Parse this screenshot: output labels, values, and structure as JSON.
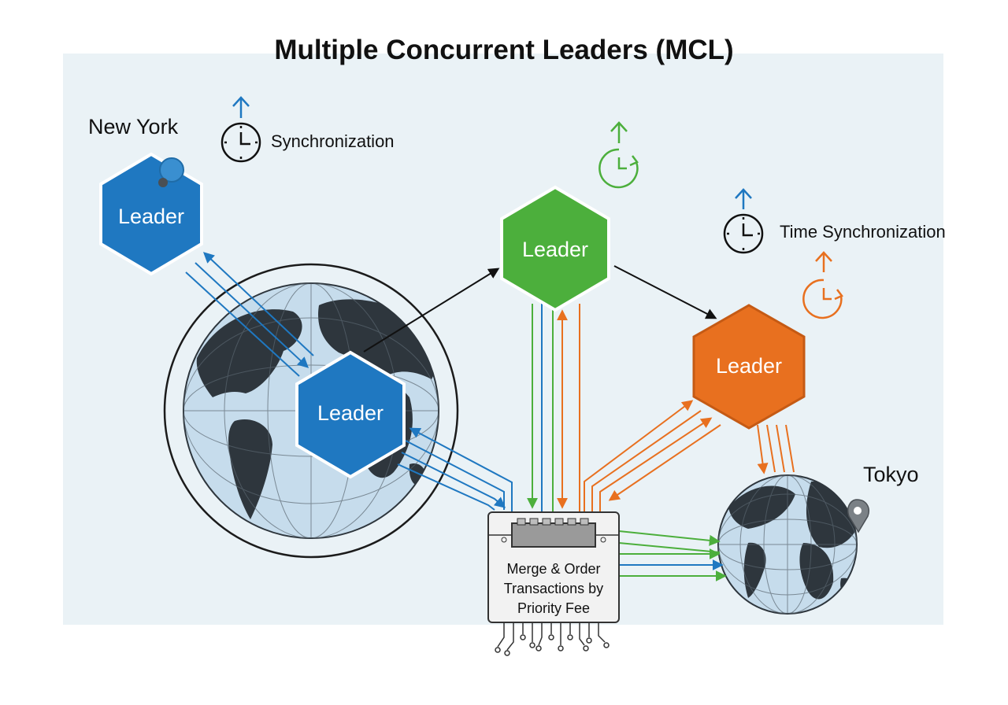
{
  "title": "Multiple Concurrent Leaders (MCL)",
  "labels": {
    "new_york": "New York",
    "tokyo": "Tokyo",
    "synchronization": "Synchronization",
    "time_synchronization": "Time Synchronization"
  },
  "leaders": {
    "new_york_leader": "Leader",
    "globe_leader": "Leader",
    "green_leader": "Leader",
    "orange_leader": "Leader"
  },
  "processor": {
    "line1": "Merge & Order",
    "line2": "Transactions by",
    "line3": "Priority Fee"
  },
  "colors": {
    "blue": "#1f78c1",
    "green": "#4caf3c",
    "orange": "#e8701f",
    "dark": "#2e363d",
    "ocean": "#c6dcec"
  }
}
